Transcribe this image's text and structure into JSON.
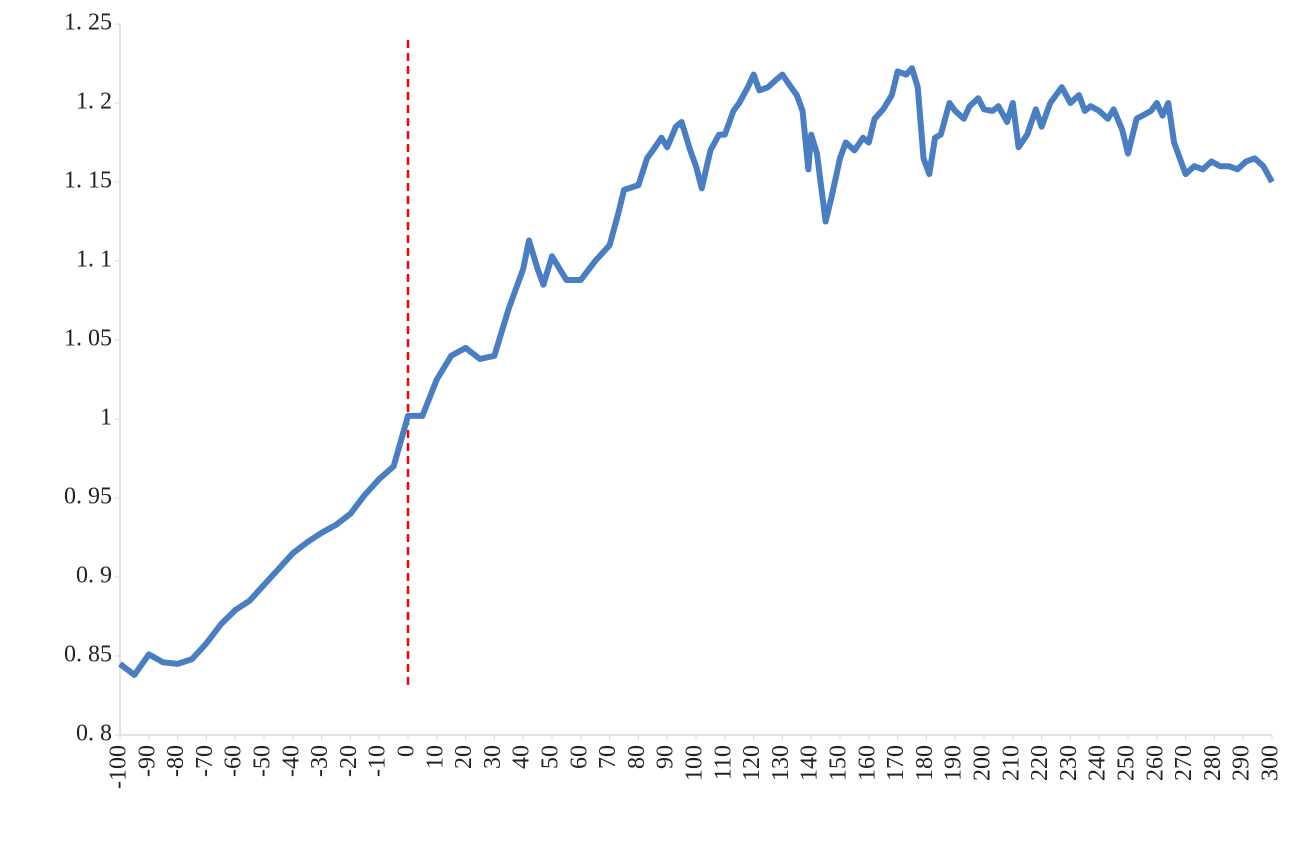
{
  "chart_data": {
    "type": "line",
    "x": [
      -100,
      -95,
      -90,
      -85,
      -80,
      -75,
      -70,
      -65,
      -60,
      -55,
      -50,
      -45,
      -40,
      -35,
      -30,
      -25,
      -20,
      -15,
      -10,
      -5,
      0,
      5,
      10,
      15,
      20,
      25,
      30,
      35,
      40,
      42,
      45,
      47,
      50,
      55,
      60,
      65,
      70,
      73,
      75,
      80,
      83,
      85,
      88,
      90,
      93,
      95,
      98,
      100,
      102,
      105,
      108,
      110,
      113,
      115,
      118,
      120,
      122,
      125,
      128,
      130,
      133,
      135,
      137,
      139,
      140,
      142,
      145,
      147,
      150,
      152,
      155,
      158,
      160,
      162,
      165,
      168,
      170,
      173,
      175,
      177,
      179,
      181,
      183,
      185,
      188,
      190,
      193,
      195,
      198,
      200,
      203,
      205,
      208,
      210,
      212,
      215,
      218,
      220,
      223,
      225,
      227,
      230,
      233,
      235,
      237,
      240,
      243,
      245,
      248,
      250,
      253,
      255,
      258,
      260,
      262,
      264,
      266,
      268,
      270,
      273,
      276,
      279,
      282,
      285,
      288,
      291,
      294,
      297,
      300
    ],
    "series": [
      {
        "color": "#4a7ec2",
        "values": [
          0.845,
          0.838,
          0.851,
          0.846,
          0.845,
          0.848,
          0.858,
          0.87,
          0.879,
          0.885,
          0.895,
          0.905,
          0.915,
          0.922,
          0.928,
          0.933,
          0.94,
          0.952,
          0.962,
          0.97,
          1.002,
          1.002,
          1.025,
          1.04,
          1.045,
          1.038,
          1.04,
          1.07,
          1.095,
          1.113,
          1.095,
          1.085,
          1.103,
          1.088,
          1.088,
          1.1,
          1.11,
          1.13,
          1.145,
          1.148,
          1.165,
          1.17,
          1.178,
          1.172,
          1.185,
          1.188,
          1.17,
          1.16,
          1.146,
          1.17,
          1.18,
          1.18,
          1.195,
          1.2,
          1.21,
          1.218,
          1.208,
          1.21,
          1.215,
          1.218,
          1.21,
          1.205,
          1.195,
          1.158,
          1.18,
          1.168,
          1.125,
          1.14,
          1.165,
          1.175,
          1.17,
          1.178,
          1.175,
          1.19,
          1.196,
          1.205,
          1.22,
          1.218,
          1.222,
          1.21,
          1.165,
          1.155,
          1.178,
          1.18,
          1.2,
          1.195,
          1.19,
          1.198,
          1.203,
          1.196,
          1.195,
          1.198,
          1.188,
          1.2,
          1.172,
          1.18,
          1.196,
          1.185,
          1.2,
          1.205,
          1.21,
          1.2,
          1.205,
          1.195,
          1.198,
          1.195,
          1.19,
          1.196,
          1.183,
          1.168,
          1.19,
          1.192,
          1.195,
          1.2,
          1.192,
          1.2,
          1.175,
          1.165,
          1.155,
          1.16,
          1.158,
          1.163,
          1.16,
          1.16,
          1.158,
          1.163,
          1.165,
          1.16,
          1.15
        ]
      }
    ],
    "xlim": [
      -100,
      300
    ],
    "xticks": [
      -100,
      -90,
      -80,
      -70,
      -60,
      -50,
      -40,
      -30,
      -20,
      -10,
      0,
      10,
      20,
      30,
      40,
      50,
      60,
      70,
      80,
      90,
      100,
      110,
      120,
      130,
      140,
      150,
      160,
      170,
      180,
      190,
      200,
      210,
      220,
      230,
      240,
      250,
      260,
      270,
      280,
      290,
      300
    ],
    "ylim": [
      0.8,
      1.25
    ],
    "yticks": [
      {
        "value": 0.8,
        "label": "0. 8"
      },
      {
        "value": 0.85,
        "label": "0. 85"
      },
      {
        "value": 0.9,
        "label": "0. 9"
      },
      {
        "value": 0.95,
        "label": "0. 95"
      },
      1,
      {
        "value": 1.05,
        "label": "1. 05"
      },
      {
        "value": 1.1,
        "label": "1. 1"
      },
      {
        "value": 1.15,
        "label": "1. 15"
      },
      {
        "value": 1.2,
        "label": "1. 2"
      },
      {
        "value": 1.25,
        "label": "1. 25"
      }
    ],
    "vline": {
      "x": 0,
      "color": "#ff0000"
    }
  }
}
